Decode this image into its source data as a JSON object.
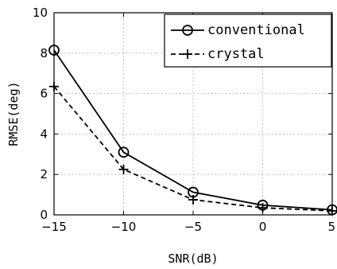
{
  "chart_data": {
    "type": "line",
    "title": "",
    "xlabel": "SNR(dB)",
    "ylabel": "RMSE(deg)",
    "xlim": [
      -15,
      5
    ],
    "ylim": [
      0,
      10
    ],
    "xticks": [
      -15,
      -10,
      -5,
      0,
      5
    ],
    "xtick_labels": [
      "−15",
      "−10",
      "−5",
      "0",
      "5"
    ],
    "yticks": [
      0,
      2,
      4,
      6,
      8,
      10
    ],
    "ytick_labels": [
      "0",
      "2",
      "4",
      "6",
      "8",
      "10"
    ],
    "grid": true,
    "legend_position": "top-right",
    "x": [
      -15,
      -10,
      -5,
      0,
      5
    ],
    "series": [
      {
        "name": "conventional",
        "values": [
          8.15,
          3.1,
          1.12,
          0.48,
          0.25
        ],
        "line_style": "solid",
        "marker": "circle",
        "color": "#000000"
      },
      {
        "name": "crystal",
        "values": [
          6.35,
          2.25,
          0.75,
          0.35,
          0.2
        ],
        "line_style": "dashed",
        "marker": "plus",
        "color": "#000000"
      }
    ]
  }
}
